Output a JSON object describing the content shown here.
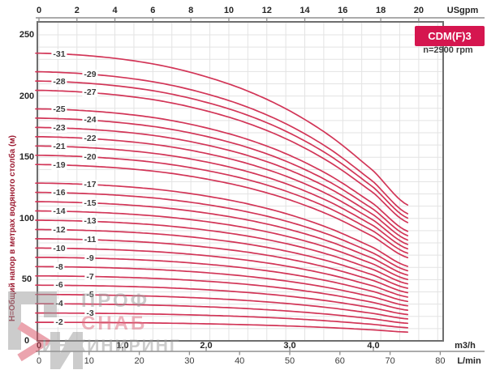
{
  "header": {
    "model": "CDM(F)3",
    "speed": "n=2900 rpm"
  },
  "y_axis": {
    "title": "H=Общий напор в метрах водяного столба (м)",
    "ticks": [
      0,
      50,
      100,
      150,
      200,
      250
    ]
  },
  "axes": {
    "usgpm": {
      "unit": "USgpm",
      "ticks": [
        0,
        2,
        4,
        6,
        8,
        10,
        12,
        14,
        16,
        18,
        20
      ]
    },
    "m3h": {
      "unit": "m3/h",
      "tick_labels": [
        "0",
        "1.0",
        "2.0",
        "3.0",
        "4.0"
      ],
      "tick_values": [
        0,
        1,
        2,
        3,
        4
      ]
    },
    "lmin": {
      "unit": "L/min",
      "ticks": [
        0,
        10,
        20,
        30,
        40,
        50,
        60,
        70,
        80
      ]
    }
  },
  "chart_data": {
    "type": "line",
    "title": "CDM(F)3",
    "subtitle": "n=2900 rpm",
    "ylabel": "H=Общий напор в метрах водяного столба (м)",
    "x_units": [
      "USgpm",
      "m3/h",
      "L/min"
    ],
    "x_range_m3h": [
      0,
      4.85
    ],
    "y_range_m": [
      0,
      260
    ],
    "grid": true,
    "stages": [
      2,
      3,
      4,
      5,
      6,
      7,
      8,
      9,
      10,
      11,
      12,
      13,
      14,
      15,
      16,
      17,
      19,
      20,
      21,
      22,
      23,
      24,
      25,
      27,
      28,
      29,
      31
    ],
    "per_stage_head": {
      "q_m3h": [
        0,
        0.5,
        1.0,
        1.5,
        2.0,
        2.5,
        3.0,
        3.5,
        4.0,
        4.41
      ],
      "head_m": [
        7.58,
        7.53,
        7.42,
        7.24,
        6.96,
        6.58,
        6.06,
        5.37,
        4.48,
        3.58
      ]
    },
    "curve_head_rule": "head of curve -N = N x per_stage_head",
    "q_end_m3h": 4.41
  },
  "curve_labels": {
    "left_column_stages": [
      2,
      4,
      6,
      8,
      10,
      12,
      14,
      16,
      19,
      21,
      23,
      25,
      28,
      31
    ],
    "right_column_stages": [
      3,
      5,
      7,
      9,
      11,
      13,
      15,
      17,
      20,
      22,
      24,
      27,
      29
    ]
  },
  "watermark": {
    "line1": "ПРОФ",
    "line2": "СНАБ",
    "line3": "ИНЖИНИРИНГ"
  },
  "colors": {
    "curve": "#d23557",
    "badge_bg": "#d5164f",
    "grid": "#e3e3e3",
    "frame": "#6e6e6e",
    "axis_line": "#8f8f8f",
    "text": "#262626",
    "y_title": "#9c1b31",
    "watermark_gray": "#9a9a9a",
    "watermark_pink": "#dd6b7e",
    "watermark_red": "#d94b5f"
  }
}
